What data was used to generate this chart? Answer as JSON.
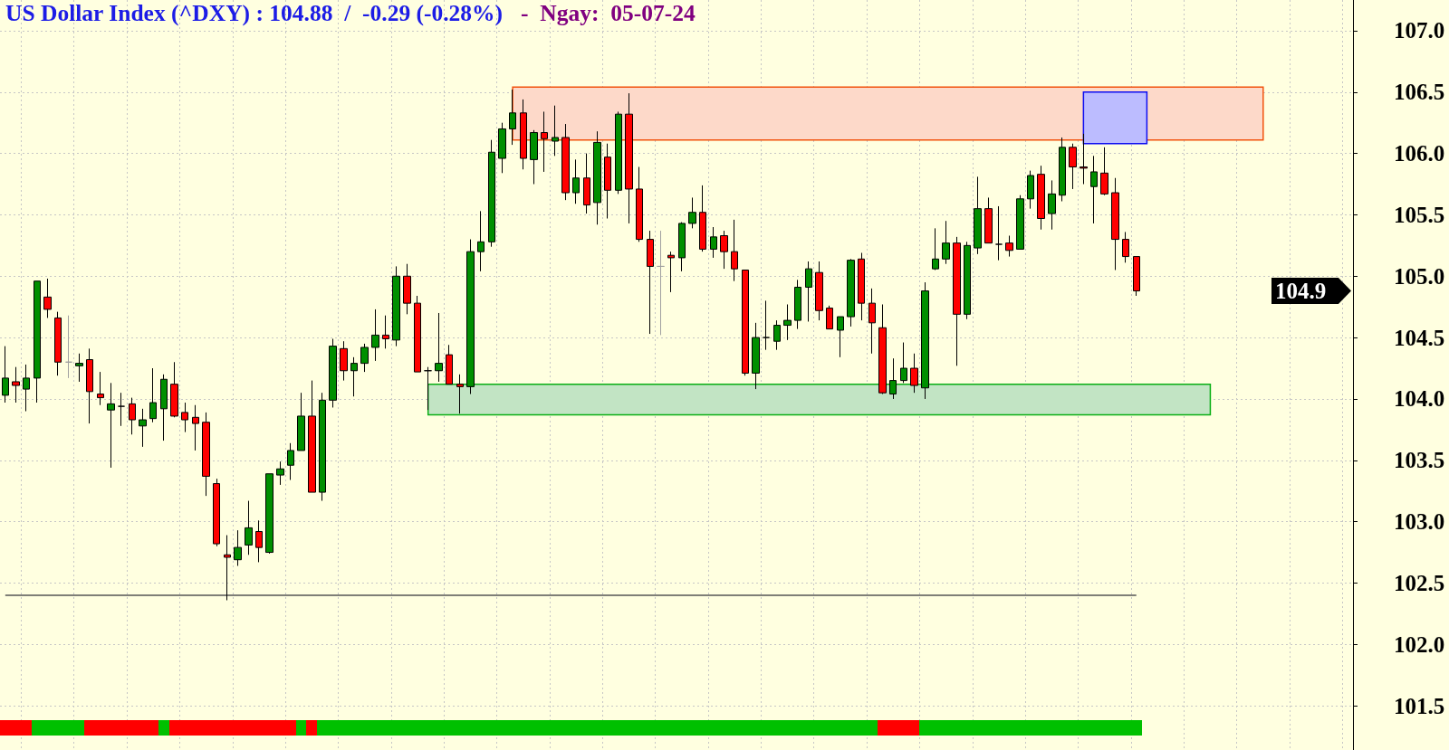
{
  "chart_data": {
    "type": "candlestick",
    "title": "US Dollar Index (^DXY) : 104.88  /  -0.29 (-0.28%)",
    "subtitle": "-  Ngay:  05-07-24",
    "categories": [
      null,
      null,
      null,
      null,
      null,
      null,
      null,
      null,
      null,
      null,
      null,
      null,
      null,
      null,
      null,
      null,
      null,
      null,
      null,
      null,
      null,
      null,
      null,
      null,
      null,
      null,
      null,
      null,
      null,
      null,
      null,
      null,
      null,
      null,
      null,
      null,
      null,
      null,
      null,
      null,
      null,
      null,
      null,
      null,
      null,
      null,
      null,
      null,
      null,
      null,
      null,
      null,
      null,
      null,
      null,
      null,
      null,
      null,
      null,
      null,
      null,
      null,
      null,
      null,
      null,
      null,
      null,
      null,
      null,
      null,
      null,
      null,
      null,
      null,
      null,
      null,
      null,
      null,
      null,
      null,
      null,
      null,
      null,
      null,
      null,
      null,
      null,
      null,
      null,
      null,
      null,
      null,
      null,
      null,
      null,
      null,
      null,
      null,
      null,
      null,
      null,
      null,
      null,
      null,
      null,
      null,
      null,
      null,
      null,
      null,
      null,
      null,
      null,
      null,
      null,
      null,
      null,
      null,
      null,
      null,
      null,
      null,
      null,
      null,
      null,
      null,
      null,
      null
    ],
    "color": "#000000",
    "colors": [
      "#008f00",
      "#ff0000",
      "#008f00",
      "#008f00",
      "#ff0000",
      "#ff0000",
      "#a0a0a0",
      "#008f00",
      "#ff0000",
      "#ff0000",
      "#008f00",
      "#000000",
      "#ff0000",
      "#008f00",
      "#008f00",
      "#008f00",
      "#ff0000",
      "#ff0000",
      "#ff0000",
      "#ff0000",
      "#ff0000",
      "#ff0000",
      "#008f00",
      "#008f00",
      "#ff0000",
      "#008f00",
      "#008f00",
      "#008f00",
      "#008f00",
      "#ff0000",
      "#008f00",
      "#008f00",
      "#ff0000",
      "#008f00",
      "#008f00",
      "#008f00",
      "#ff0000",
      "#008f00",
      "#ff0000",
      "#ff0000",
      "#000000",
      "#008f00",
      "#ff0000",
      "#ff0000",
      "#008f00",
      "#008f00",
      "#008f00",
      "#008f00",
      "#008f00",
      "#ff0000",
      "#008f00",
      "#ff0000",
      "#008f00",
      "#ff0000",
      "#008f00",
      "#ff0000",
      "#008f00",
      "#ff0000",
      "#008f00",
      "#ff0000",
      "#ff0000",
      "#ff0000",
      "#a0a0a0",
      "#ff0000",
      "#008f00",
      "#008f00",
      "#ff0000",
      "#008f00",
      "#ff0000",
      "#ff0000",
      "#ff0000",
      "#008f00",
      "#000000",
      "#008f00",
      "#008f00",
      "#008f00",
      "#008f00",
      "#ff0000",
      "#ff0000",
      "#008f00",
      "#008f00",
      "#ff0000",
      "#ff0000",
      "#ff0000",
      "#008f00",
      "#008f00",
      "#ff0000",
      "#008f00",
      "#008f00",
      "#008f00",
      "#ff0000",
      "#008f00",
      "#008f00",
      "#ff0000",
      "#000000",
      "#ff0000",
      "#008f00",
      "#008f00",
      "#ff0000",
      "#008f00",
      "#008f00",
      "#ff0000",
      "#ff0000",
      "#008f00",
      "#ff0000",
      "#ff0000",
      "#ff0000",
      "#ff0000",
      null,
      null,
      null,
      null,
      null,
      null,
      null,
      null,
      null,
      null,
      null,
      null,
      null,
      null,
      null,
      null,
      null,
      null,
      null,
      null
    ],
    "ohlc": [
      [
        104.03,
        104.43,
        103.97,
        104.17
      ],
      [
        104.14,
        104.26,
        103.97,
        104.11
      ],
      [
        104.08,
        104.28,
        103.9,
        104.17
      ],
      [
        104.17,
        104.96,
        103.97,
        104.96
      ],
      [
        104.83,
        104.98,
        104.66,
        104.73
      ],
      [
        104.66,
        104.71,
        104.19,
        104.3
      ],
      [
        104.3,
        104.68,
        104.17,
        104.3
      ],
      [
        104.27,
        104.37,
        104.14,
        104.29
      ],
      [
        104.32,
        104.41,
        103.8,
        104.06
      ],
      [
        104.04,
        104.22,
        103.95,
        104.01
      ],
      [
        103.91,
        104.13,
        103.44,
        103.96
      ],
      [
        103.94,
        104.05,
        103.78,
        103.94
      ],
      [
        103.96,
        104.01,
        103.71,
        103.83
      ],
      [
        103.78,
        103.92,
        103.61,
        103.83
      ],
      [
        103.84,
        104.25,
        103.81,
        103.97
      ],
      [
        103.92,
        104.2,
        103.66,
        104.16
      ],
      [
        104.12,
        104.3,
        103.85,
        103.86
      ],
      [
        103.89,
        103.97,
        103.73,
        103.83
      ],
      [
        103.85,
        103.95,
        103.58,
        103.8
      ],
      [
        103.81,
        103.89,
        103.21,
        103.37
      ],
      [
        103.31,
        103.35,
        102.8,
        102.82
      ],
      [
        102.73,
        102.89,
        102.36,
        102.71
      ],
      [
        102.69,
        102.93,
        102.64,
        102.79
      ],
      [
        102.81,
        103.17,
        102.73,
        102.95
      ],
      [
        102.92,
        103.01,
        102.67,
        102.79
      ],
      [
        102.75,
        103.39,
        102.74,
        103.39
      ],
      [
        103.38,
        103.49,
        103.3,
        103.43
      ],
      [
        103.46,
        103.64,
        103.34,
        103.58
      ],
      [
        103.58,
        104.05,
        103.58,
        103.86
      ],
      [
        103.86,
        104.15,
        103.24,
        103.24
      ],
      [
        103.24,
        104.05,
        103.17,
        103.99
      ],
      [
        103.99,
        104.49,
        103.93,
        104.43
      ],
      [
        104.41,
        104.47,
        104.15,
        104.23
      ],
      [
        104.23,
        104.34,
        104.02,
        104.29
      ],
      [
        104.29,
        104.45,
        104.22,
        104.42
      ],
      [
        104.42,
        104.73,
        104.31,
        104.52
      ],
      [
        104.52,
        104.68,
        104.41,
        104.49
      ],
      [
        104.48,
        105.08,
        104.43,
        105
      ],
      [
        105,
        105.1,
        104.69,
        104.78
      ],
      [
        104.78,
        104.84,
        104.22,
        104.22
      ],
      [
        104.23,
        104.26,
        103.91,
        104.23
      ],
      [
        104.23,
        104.7,
        104.14,
        104.29
      ],
      [
        104.36,
        104.44,
        104.12,
        104.12
      ],
      [
        104.12,
        104.2,
        103.88,
        104.1
      ],
      [
        104.1,
        105.3,
        104.04,
        105.2
      ],
      [
        105.2,
        105.53,
        105.04,
        105.28
      ],
      [
        105.28,
        106.11,
        105.24,
        106.01
      ],
      [
        105.96,
        106.25,
        105.84,
        106.2
      ],
      [
        106.2,
        106.52,
        106.07,
        106.33
      ],
      [
        106.33,
        106.44,
        105.87,
        105.96
      ],
      [
        105.95,
        106.19,
        105.75,
        106.17
      ],
      [
        106.17,
        106.34,
        105.85,
        106.12
      ],
      [
        106.1,
        106.39,
        105.98,
        106.13
      ],
      [
        106.13,
        106.24,
        105.62,
        105.68
      ],
      [
        105.68,
        105.95,
        105.59,
        105.8
      ],
      [
        105.8,
        106,
        105.51,
        105.58
      ],
      [
        105.6,
        106.18,
        105.42,
        106.09
      ],
      [
        105.97,
        106.08,
        105.47,
        105.7
      ],
      [
        105.7,
        106.34,
        105.67,
        106.32
      ],
      [
        106.32,
        106.49,
        105.43,
        105.71
      ],
      [
        105.71,
        105.89,
        105.28,
        105.3
      ],
      [
        105.3,
        105.37,
        104.53,
        105.08
      ],
      [
        105.08,
        105.37,
        104.52,
        105.08
      ],
      [
        105.17,
        105.2,
        104.87,
        105.15
      ],
      [
        105.15,
        105.44,
        105.04,
        105.43
      ],
      [
        105.43,
        105.64,
        105.39,
        105.52
      ],
      [
        105.52,
        105.74,
        105.2,
        105.22
      ],
      [
        105.22,
        105.4,
        105.15,
        105.32
      ],
      [
        105.33,
        105.37,
        105.06,
        105.2
      ],
      [
        105.2,
        105.46,
        104.96,
        105.06
      ],
      [
        105.05,
        105.05,
        104.19,
        104.21
      ],
      [
        104.21,
        104.62,
        104.08,
        104.5
      ],
      [
        104.5,
        104.8,
        104.4,
        104.5
      ],
      [
        104.47,
        104.64,
        104.4,
        104.6
      ],
      [
        104.6,
        104.77,
        104.48,
        104.64
      ],
      [
        104.64,
        104.97,
        104.57,
        104.91
      ],
      [
        104.91,
        105.12,
        104.63,
        105.06
      ],
      [
        105.03,
        105.12,
        104.64,
        104.72
      ],
      [
        104.74,
        104.76,
        104.57,
        104.57
      ],
      [
        104.56,
        104.67,
        104.34,
        104.67
      ],
      [
        104.67,
        105.14,
        104.59,
        105.13
      ],
      [
        105.14,
        105.19,
        104.64,
        104.78
      ],
      [
        104.78,
        104.9,
        104.37,
        104.62
      ],
      [
        104.58,
        104.77,
        104.04,
        104.05
      ],
      [
        104.04,
        104.33,
        104,
        104.15
      ],
      [
        104.15,
        104.46,
        104.13,
        104.25
      ],
      [
        104.25,
        104.37,
        104.05,
        104.11
      ],
      [
        104.09,
        104.95,
        104,
        104.88
      ],
      [
        105.06,
        105.39,
        105.05,
        105.14
      ],
      [
        105.14,
        105.45,
        105.1,
        105.27
      ],
      [
        105.27,
        105.32,
        104.27,
        104.69
      ],
      [
        104.69,
        105.28,
        104.65,
        105.25
      ],
      [
        105.23,
        105.81,
        105.18,
        105.55
      ],
      [
        105.55,
        105.64,
        105.27,
        105.27
      ],
      [
        105.26,
        105.57,
        105.13,
        105.26
      ],
      [
        105.27,
        105.33,
        105.16,
        105.21
      ],
      [
        105.22,
        105.66,
        105.22,
        105.63
      ],
      [
        105.63,
        105.86,
        105.55,
        105.82
      ],
      [
        105.83,
        105.9,
        105.38,
        105.47
      ],
      [
        105.51,
        105.78,
        105.38,
        105.67
      ],
      [
        105.66,
        106.13,
        105.61,
        106.05
      ],
      [
        106.05,
        106.08,
        105.71,
        105.89
      ],
      [
        105.89,
        106.16,
        105.75,
        105.88
      ],
      [
        105.73,
        105.98,
        105.43,
        105.85
      ],
      [
        105.84,
        106.05,
        105.66,
        105.67
      ],
      [
        105.68,
        105.8,
        105.05,
        105.3
      ],
      [
        105.3,
        105.36,
        105.11,
        105.16
      ],
      [
        105.16,
        105.16,
        104.84,
        104.88
      ],
      null,
      null,
      null,
      null,
      null,
      null,
      null,
      null,
      null,
      null,
      null,
      null,
      null,
      null,
      null,
      null,
      null,
      null,
      null,
      null
    ],
    "ylim": [
      101.14,
      107.25
    ],
    "yticks": [
      101.5,
      {
        "value": 102,
        "label": "102.0"
      },
      102.5,
      {
        "value": 103,
        "label": "103.0"
      },
      103.5,
      {
        "value": 104,
        "label": "104.0"
      },
      104.5,
      {
        "value": 105,
        "label": "105.0"
      },
      105.5,
      {
        "value": 106,
        "label": "106.0"
      },
      106.5,
      {
        "value": 107,
        "label": "107.0"
      }
    ],
    "grid": true,
    "tick_labels": "y",
    "ref_lines": [
      {
        "axis": "y",
        "value": 102.4,
        "color": "#555555"
      }
    ],
    "bands": [
      {
        "axis": "y",
        "from": 106.11,
        "to": 106.54,
        "color": "#fdd9c9"
      },
      {
        "axis": "y",
        "from": 103.87,
        "to": 104.12,
        "color": "#c2e4c4"
      },
      {
        "axis": "y",
        "from": 106.08,
        "to": 106.5,
        "color": "#bcbcff"
      }
    ],
    "annotations": [
      "104.9"
    ]
  }
}
